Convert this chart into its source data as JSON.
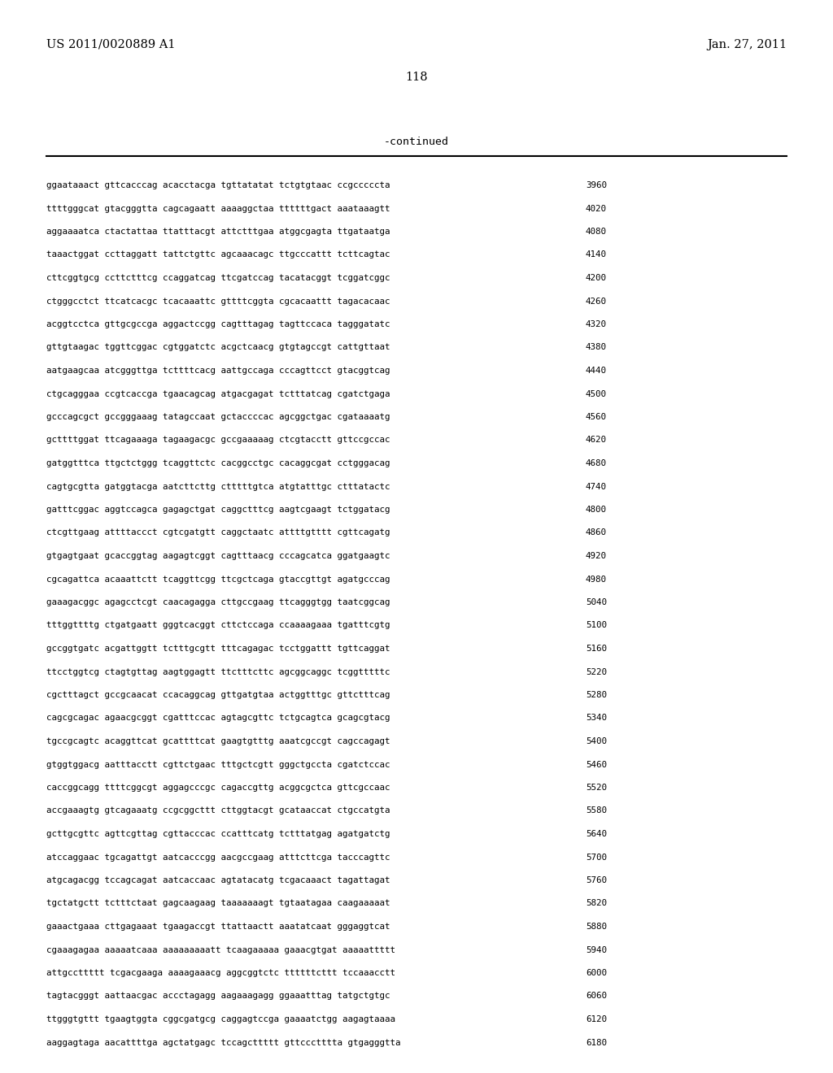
{
  "header_left": "US 2011/0020889 A1",
  "header_right": "Jan. 27, 2011",
  "page_number": "118",
  "continued_label": "-continued",
  "background_color": "#ffffff",
  "text_color": "#000000",
  "font_size_header": 10.5,
  "font_size_page": 10.5,
  "font_size_continued": 9.5,
  "font_size_sequence": 7.8,
  "sequence_lines": [
    [
      "ggaataaact gttcacccag acacctacga tgttatatat tctgtgtaac ccgcccccta",
      "3960"
    ],
    [
      "ttttgggcat gtacgggtta cagcagaatt aaaaggctaa ttttttgact aaataaagtt",
      "4020"
    ],
    [
      "aggaaaatca ctactattaa ttatttacgt attctttgaa atggcgagta ttgataatga",
      "4080"
    ],
    [
      "taaactggat ccttaggatt tattctgttc agcaaacagc ttgcccattt tcttcagtac",
      "4140"
    ],
    [
      "cttcggtgcg ccttctttcg ccaggatcag ttcgatccag tacatacggt tcggatcggc",
      "4200"
    ],
    [
      "ctgggcctct ttcatcacgc tcacaaattc gttttcggta cgcacaattt tagacacaac",
      "4260"
    ],
    [
      "acggtcctca gttgcgccga aggactccgg cagtttagag tagttccaca tagggatatc",
      "4320"
    ],
    [
      "gttgtaagac tggttcggac cgtggatctc acgctcaacg gtgtagccgt cattgttaat",
      "4380"
    ],
    [
      "aatgaagcaa atcgggttga tcttttcacg aattgccaga cccagttcct gtacggtcag",
      "4440"
    ],
    [
      "ctgcagggaa ccgtcaccga tgaacagcag atgacgagat tctttatcag cgatctgaga",
      "4500"
    ],
    [
      "gcccagcgct gccgggaaag tatagccaat gctaccccac agcggctgac cgataaaatg",
      "4560"
    ],
    [
      "gcttttggat ttcagaaaga tagaagacgc gccgaaaaag ctcgtacctt gttccgccac",
      "4620"
    ],
    [
      "gatggtttca ttgctctggg tcaggttctc cacggcctgc cacaggcgat cctgggacag",
      "4680"
    ],
    [
      "cagtgcgtta gatggtacga aatcttcttg ctttttgtca atgtatttgc ctttatactc",
      "4740"
    ],
    [
      "gatttcggac aggtccagca gagagctgat caggctttcg aagtcgaagt tctggatacg",
      "4800"
    ],
    [
      "ctcgttgaag attttaccct cgtcgatgtt caggctaatc attttgtttt cgttcagatg",
      "4860"
    ],
    [
      "gtgagtgaat gcaccggtag aagagtcggt cagtttaacg cccagcatca ggatgaagtc",
      "4920"
    ],
    [
      "cgcagattca acaaattctt tcaggttcgg ttcgctcaga gtaccgttgt agatgcccag",
      "4980"
    ],
    [
      "gaaagacggc agagcctcgt caacagagga cttgccgaag ttcagggtgg taatcggcag",
      "5040"
    ],
    [
      "tttggttttg ctgatgaatt gggtcacggt cttctccaga ccaaaagaaa tgatttcgtg",
      "5100"
    ],
    [
      "gccggtgatc acgattggtt tctttgcgtt tttcagagac tcctggattt tgttcaggat",
      "5160"
    ],
    [
      "ttcctggtcg ctagtgttag aagtggagtt ttctttcttc agcggcaggc tcggtttttc",
      "5220"
    ],
    [
      "cgctttagct gccgcaacat ccacaggcag gttgatgtaa actggtttgc gttctttcag",
      "5280"
    ],
    [
      "cagcgcagac agaacgcggt cgatttccac agtagcgttc tctgcagtca gcagcgtacg",
      "5340"
    ],
    [
      "tgccgcagtc acaggttcat gcattttcat gaagtgtttg aaatcgccgt cagccagagt",
      "5400"
    ],
    [
      "gtggtggacg aatttacctt cgttctgaac tttgctcgtt gggctgccta cgatctccac",
      "5460"
    ],
    [
      "caccggcagg ttttcggcgt aggagcccgc cagaccgttg acggcgctca gttcgccaac",
      "5520"
    ],
    [
      "accgaaagtg gtcagaaatg ccgcggcttt cttggtacgt gcataaccat ctgccatgta",
      "5580"
    ],
    [
      "gcttgcgttc agttcgttag cgttacccac ccatttcatg tctttatgag agatgatctg",
      "5640"
    ],
    [
      "atccaggaac tgcagattgt aatcacccgg aacgccgaag atttcttcga tacccagttc",
      "5700"
    ],
    [
      "atgcagacgg tccagcagat aatcaccaac agtatacatg tcgacaaact tagattagat",
      "5760"
    ],
    [
      "tgctatgctt tctttctaat gagcaagaag taaaaaaagt tgtaatagaa caagaaaaat",
      "5820"
    ],
    [
      "gaaactgaaa cttgagaaat tgaagaccgt ttattaactt aaatatcaat gggaggtcat",
      "5880"
    ],
    [
      "cgaaagagaa aaaaatcaaa aaaaaaaaatt tcaagaaaaa gaaacgtgat aaaaattttt",
      "5940"
    ],
    [
      "attgccttttt tcgacgaaga aaaagaaacg aggcggtctc ttttttcttt tccaaacctt",
      "6000"
    ],
    [
      "tagtacgggt aattaacgac accctagagg aagaaagagg ggaaatttag tatgctgtgc",
      "6060"
    ],
    [
      "ttgggtgttt tgaagtggta cggcgatgcg caggagtccga gaaaatctgg aagagtaaaa",
      "6120"
    ],
    [
      "aaggagtaga aacattttga agctatgagc tccagcttttt gttccctttta gtgagggtta",
      "6180"
    ]
  ]
}
